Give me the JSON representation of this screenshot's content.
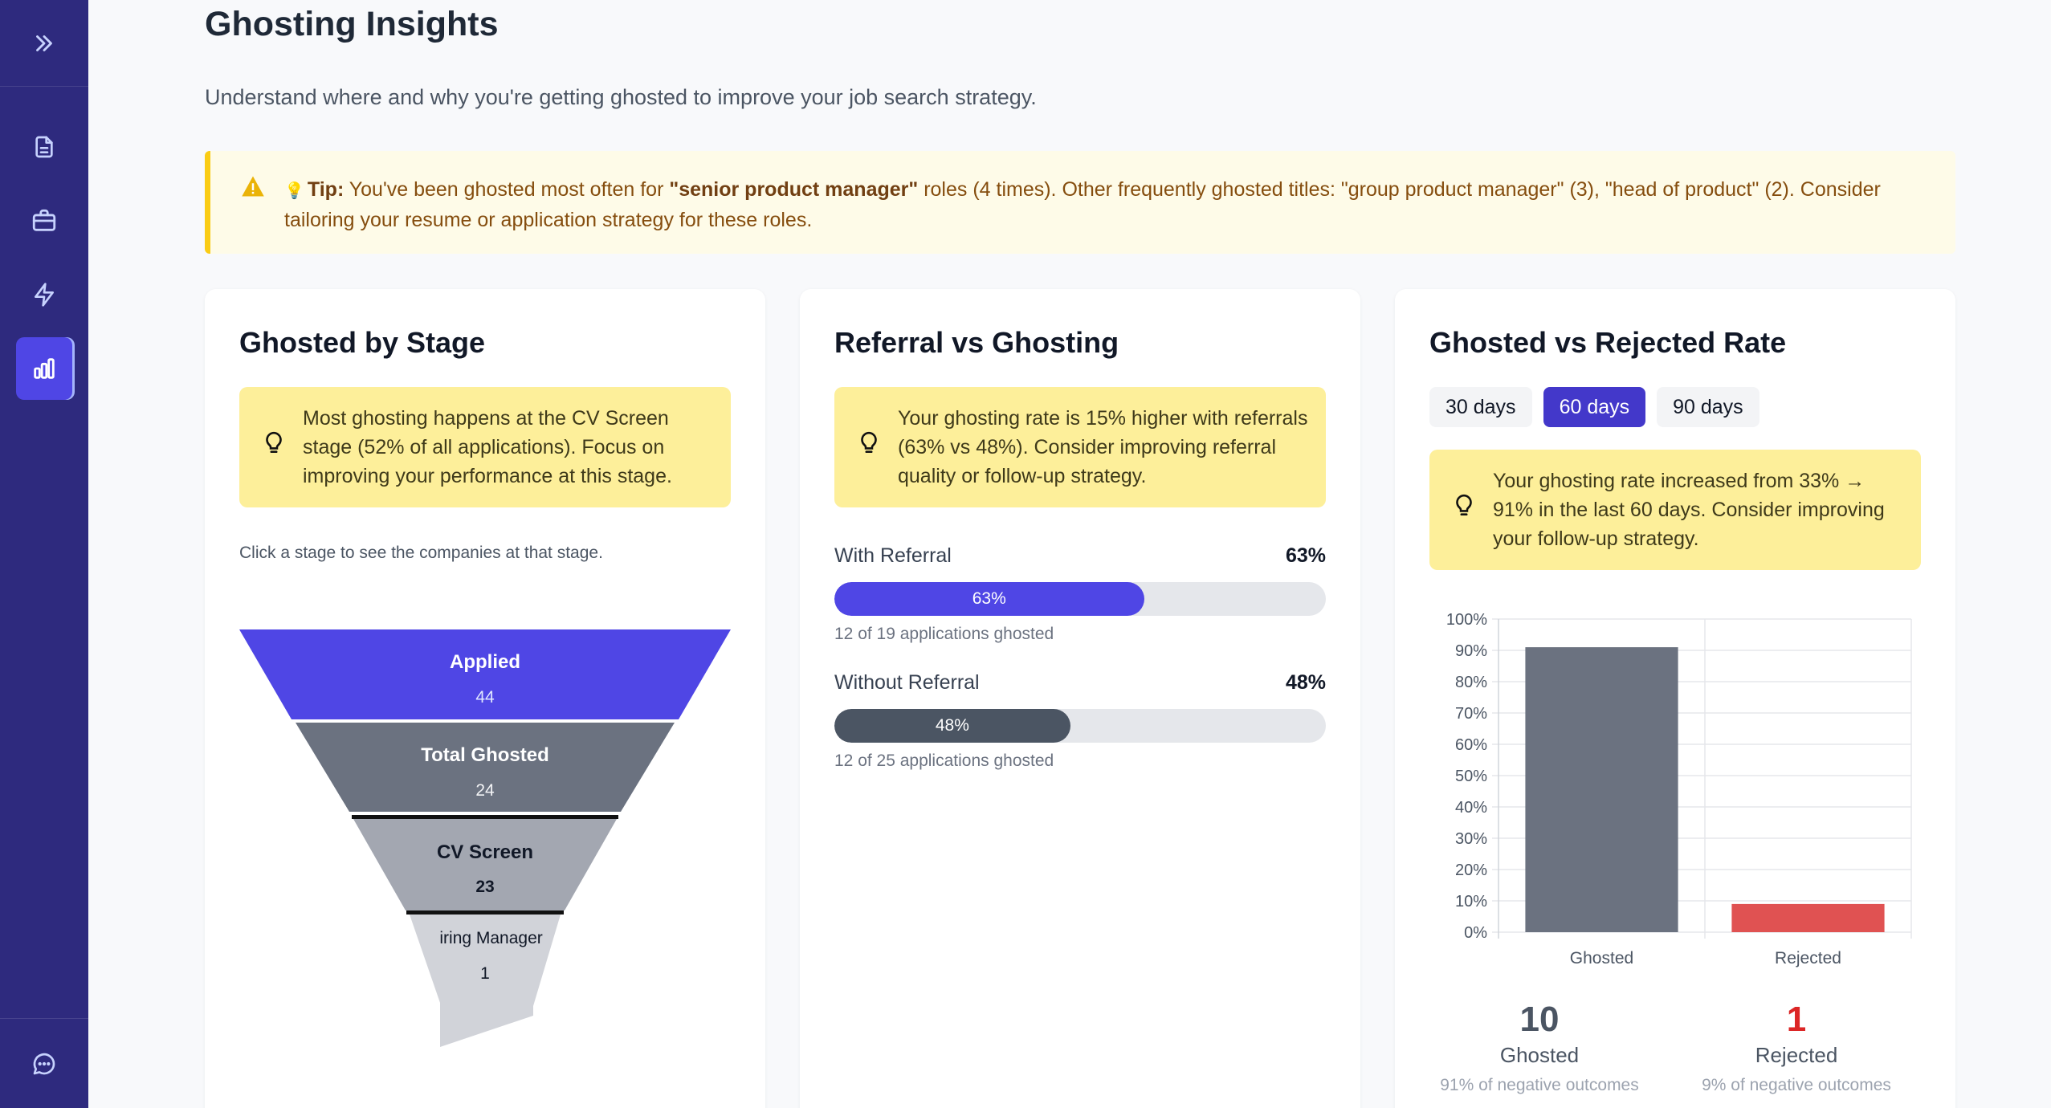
{
  "sidebar": {
    "expand_icon": "chevrons-right-icon",
    "items": [
      {
        "name": "document-icon",
        "active": false
      },
      {
        "name": "briefcase-icon",
        "active": false
      },
      {
        "name": "lightning-icon",
        "active": false
      },
      {
        "name": "bar-chart-icon",
        "active": true
      }
    ],
    "bottom_icon": "chat-icon"
  },
  "page": {
    "title": "Ghosting Insights",
    "subtitle": "Understand where and why you're getting ghosted to improve your job search strategy."
  },
  "tip": {
    "label": "Tip:",
    "before": " You've been ghosted most often for ",
    "highlight": "\"senior product manager\"",
    "after": " roles (4 times). Other frequently ghosted titles: \"group product manager\" (3), \"head of product\" (2). Consider tailoring your resume or application strategy for these roles."
  },
  "stage_card": {
    "title": "Ghosted by Stage",
    "insight": "Most ghosting happens at the CV Screen stage (52% of all applications). Focus on improving your performance at this stage.",
    "hint": "Click a stage to see the companies at that stage.",
    "stages": [
      {
        "name": "Applied",
        "count": "44"
      },
      {
        "name": "Total Ghosted",
        "count": "24"
      },
      {
        "name": "CV Screen",
        "count": "23"
      },
      {
        "name": "Hiring Manager",
        "count": "1"
      }
    ]
  },
  "referral_card": {
    "title": "Referral vs Ghosting",
    "insight": "Your ghosting rate is 15% higher with referrals (63% vs 48%). Consider improving referral quality or follow-up strategy.",
    "rows": [
      {
        "label": "With Referral",
        "pct": "63%",
        "fraction": 0.63,
        "sub": "12 of 19 applications ghosted",
        "color": "#4f46e5"
      },
      {
        "label": "Without Referral",
        "pct": "48%",
        "fraction": 0.48,
        "sub": "12 of 25 applications ghosted",
        "color": "#4b5563"
      }
    ]
  },
  "rate_card": {
    "title": "Ghosted vs Rejected Rate",
    "ranges": [
      "30 days",
      "60 days",
      "90 days"
    ],
    "active_range": "60 days",
    "insight": "Your ghosting rate increased from 33% → 91% in the last 60 days. Consider improving your follow-up strategy.",
    "stats": [
      {
        "value": "10",
        "label": "Ghosted",
        "sub": "91% of negative outcomes",
        "color": "#4b5563"
      },
      {
        "value": "1",
        "label": "Rejected",
        "sub": "9% of negative outcomes",
        "color": "#dc2626"
      }
    ]
  },
  "chart_data": {
    "type": "bar",
    "categories": [
      "Ghosted",
      "Rejected"
    ],
    "values": [
      91,
      9
    ],
    "colors": [
      "#6b7280",
      "#e05252"
    ],
    "ylim": [
      0,
      100
    ],
    "yticks": [
      "0%",
      "10%",
      "20%",
      "30%",
      "40%",
      "50%",
      "60%",
      "70%",
      "80%",
      "90%",
      "100%"
    ],
    "grid": true,
    "legend": "none"
  }
}
